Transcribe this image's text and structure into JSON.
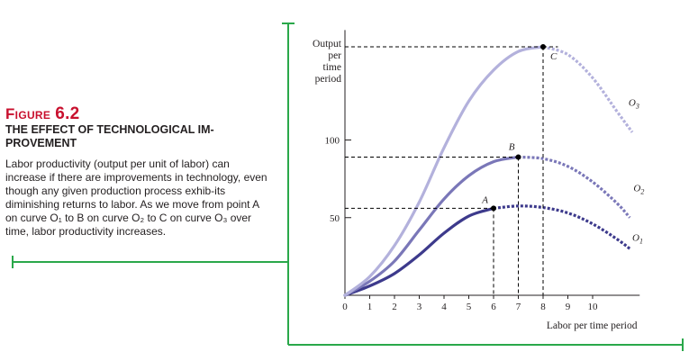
{
  "figure": {
    "label_prefix": "Figure",
    "label_number": "6.2",
    "title": "THE EFFECT OF TECHNOLOGICAL IM-\nPROVEMENT",
    "caption": "Labor productivity (output per unit of labor) can increase if there are improvements in technology, even though any given production process exhib-its diminishing returns to labor. As we move from point A on curve O₁ to B on curve O₂ to C on curve O₃ over time, labor productivity increases."
  },
  "colors": {
    "frame": "#2aa84a",
    "caption_label": "#c8102e",
    "o1": "#3d3a8c",
    "o2": "#7a77b8",
    "o3": "#b3b1dc",
    "axis": "#231f20"
  },
  "chart_data": {
    "type": "line",
    "title": "",
    "xlabel": "Labor per time period",
    "ylabel": "Output per time period",
    "ylabel_lines": [
      "Output",
      "per",
      "time",
      "period"
    ],
    "x_ticks": [
      "0",
      "1",
      "2",
      "3",
      "4",
      "5",
      "6",
      "7",
      "8",
      "9",
      "10"
    ],
    "y_ticks": [
      "50",
      "100"
    ],
    "xlim": [
      0,
      12
    ],
    "ylim": [
      0,
      165
    ],
    "grid": false,
    "legend": "none",
    "series": [
      {
        "name": "O1",
        "color_key": "o1",
        "x": [
          0,
          1,
          2,
          3,
          4,
          5,
          6,
          7,
          8,
          9,
          10,
          11,
          11.5
        ],
        "y": [
          0,
          6,
          14,
          26,
          40,
          51,
          56,
          57.5,
          56.5,
          53,
          46,
          36,
          30
        ],
        "solid_until": 6
      },
      {
        "name": "O2",
        "color_key": "o2",
        "x": [
          0,
          1,
          2,
          3,
          4,
          5,
          6,
          7,
          8,
          9,
          10,
          11,
          11.5
        ],
        "y": [
          0,
          9,
          22,
          42,
          62,
          77,
          86,
          89,
          88,
          83,
          73,
          59,
          50
        ],
        "solid_until": 7
      },
      {
        "name": "O3",
        "color_key": "o3",
        "x": [
          0,
          1,
          2,
          3,
          4,
          5,
          6,
          7,
          8,
          9,
          10,
          11,
          11.6
        ],
        "y": [
          0,
          12,
          32,
          60,
          95,
          125,
          145,
          157,
          160,
          155,
          140,
          118,
          105
        ],
        "solid_until": 8
      }
    ],
    "points": [
      {
        "label": "A",
        "x": 6,
        "y": 56
      },
      {
        "label": "B",
        "x": 7,
        "y": 89
      },
      {
        "label": "C",
        "x": 8,
        "y": 160
      }
    ],
    "curve_labels": [
      {
        "series": "O1",
        "base": "O",
        "sub": "1"
      },
      {
        "series": "O2",
        "base": "O",
        "sub": "2"
      },
      {
        "series": "O3",
        "base": "O",
        "sub": "3"
      }
    ]
  }
}
